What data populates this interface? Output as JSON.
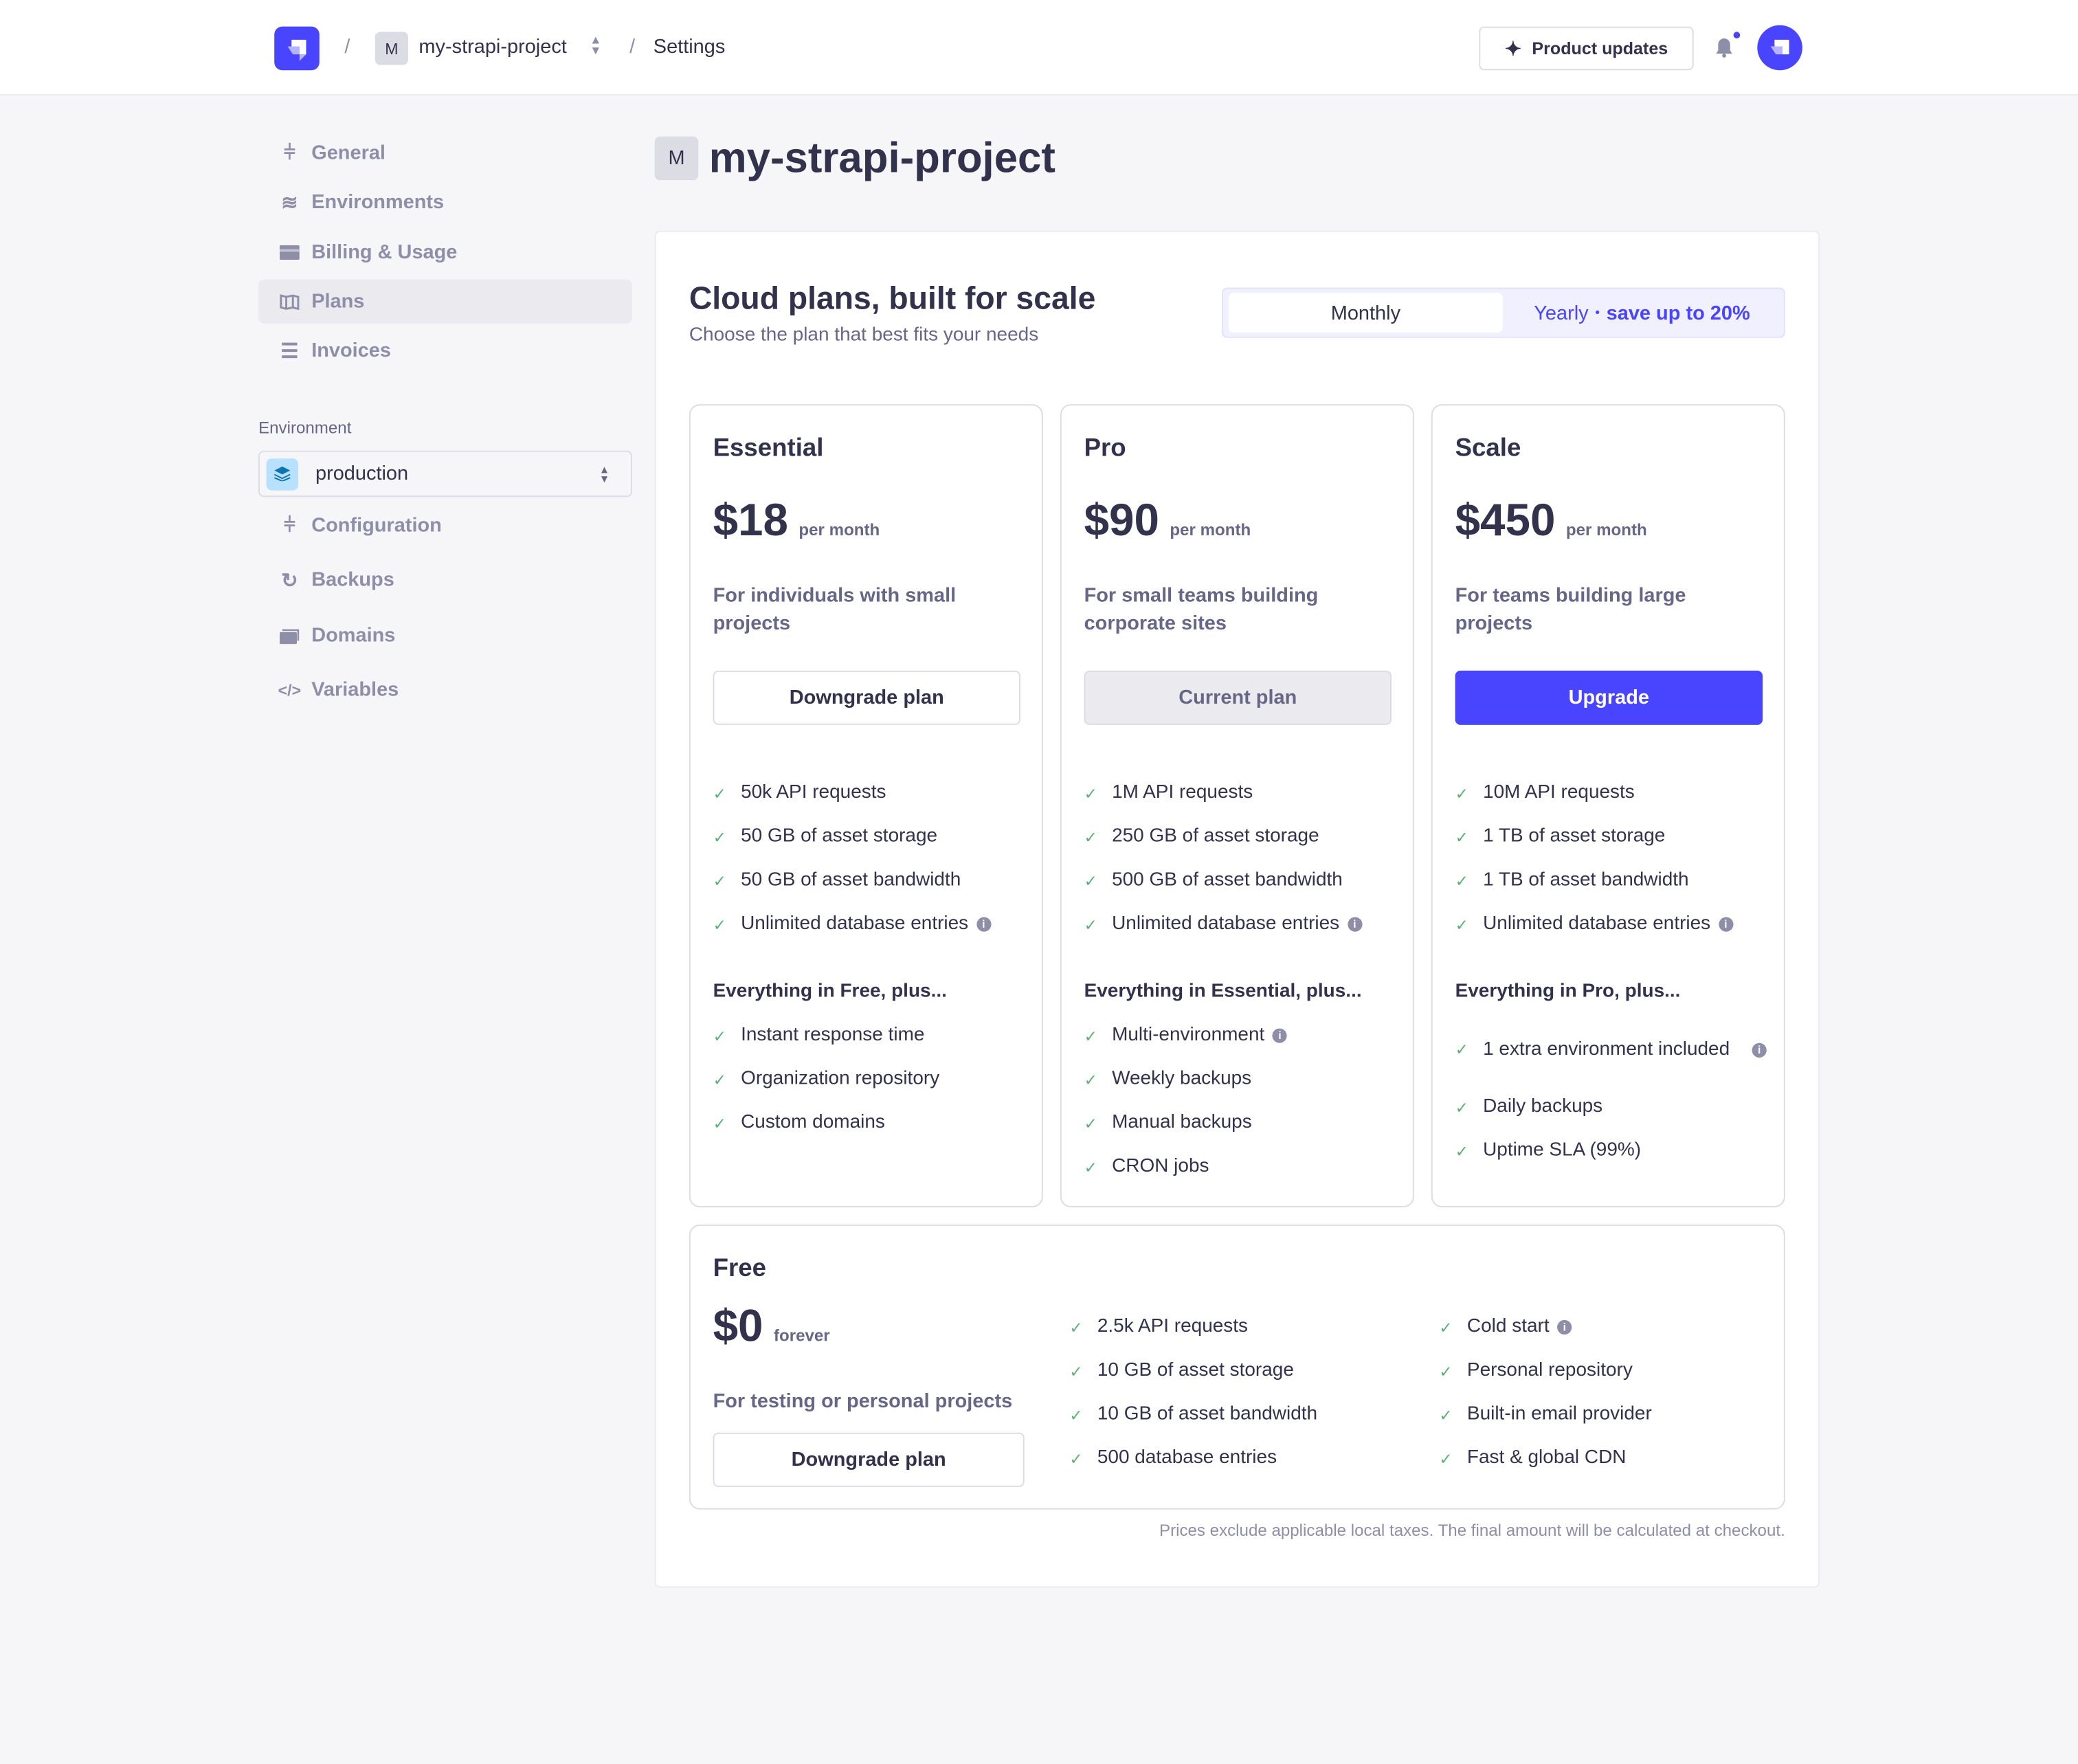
{
  "header": {
    "project_initial": "M",
    "project_name": "my-strapi-project",
    "breadcrumb_separator": "/",
    "current_page": "Settings",
    "product_updates": "Product updates",
    "notification_dot": true
  },
  "sidebar": {
    "items": [
      {
        "label": "General",
        "icon": "sliders-icon"
      },
      {
        "label": "Environments",
        "icon": "layers-icon"
      },
      {
        "label": "Billing & Usage",
        "icon": "credit-card-icon"
      },
      {
        "label": "Plans",
        "icon": "map-icon",
        "active": true
      },
      {
        "label": "Invoices",
        "icon": "invoice-icon"
      }
    ],
    "environment_label": "Environment",
    "environment_value": "production",
    "env_items": [
      {
        "label": "Configuration",
        "icon": "sliders-icon"
      },
      {
        "label": "Backups",
        "icon": "refresh-icon"
      },
      {
        "label": "Domains",
        "icon": "windows-icon"
      },
      {
        "label": "Variables",
        "icon": "code-icon"
      }
    ]
  },
  "main": {
    "project_initial": "M",
    "title": "my-strapi-project",
    "heading": "Cloud plans, built for scale",
    "subheading": "Choose the plan that best fits your needs",
    "toggle": {
      "monthly": "Monthly",
      "yearly": "Yearly",
      "yearly_dot": "•",
      "yearly_save": "save up to 20%",
      "selected": "Monthly"
    },
    "plans": [
      {
        "name": "Essential",
        "price": "$18",
        "period": "per month",
        "desc": "For individuals with small projects",
        "button": "Downgrade plan",
        "features": [
          "50k API requests",
          "50 GB of asset storage",
          "50 GB of asset bandwidth",
          "Unlimited database entries"
        ],
        "plus_heading": "Everything in Free, plus...",
        "plus": [
          "Instant response time",
          "Organization repository",
          "Custom domains"
        ]
      },
      {
        "name": "Pro",
        "price": "$90",
        "period": "per month",
        "desc": "For small teams building corporate sites",
        "button": "Current plan",
        "features": [
          "1M API requests",
          "250 GB of asset storage",
          "500 GB of asset bandwidth",
          "Unlimited database entries"
        ],
        "plus_heading": "Everything in Essential, plus...",
        "plus": [
          "Multi-environment",
          "Weekly backups",
          "Manual backups",
          "CRON jobs"
        ]
      },
      {
        "name": "Scale",
        "price": "$450",
        "period": "per month",
        "desc": "For teams building large projects",
        "button": "Upgrade",
        "features": [
          "10M API requests",
          "1 TB of asset storage",
          "1 TB of asset bandwidth",
          "Unlimited database entries"
        ],
        "plus_heading": "Everything in Pro, plus...",
        "plus": [
          "1 extra environment included",
          "Daily backups",
          "Uptime SLA (99%)"
        ]
      }
    ],
    "free": {
      "name": "Free",
      "price": "$0",
      "period": "forever",
      "desc": "For testing or personal projects",
      "button": "Downgrade plan",
      "col1": [
        "2.5k API requests",
        "10 GB of asset storage",
        "10 GB of asset bandwidth",
        "500 database entries"
      ],
      "col2": [
        "Cold start",
        "Personal repository",
        "Built-in email provider",
        "Fast & global CDN"
      ]
    },
    "footnote": "Prices exclude applicable local taxes. The final amount will be calculated at checkout."
  },
  "colors": {
    "primary": "#4945ff",
    "check": "#5cb176",
    "text": "#32324d",
    "muted": "#666687"
  }
}
